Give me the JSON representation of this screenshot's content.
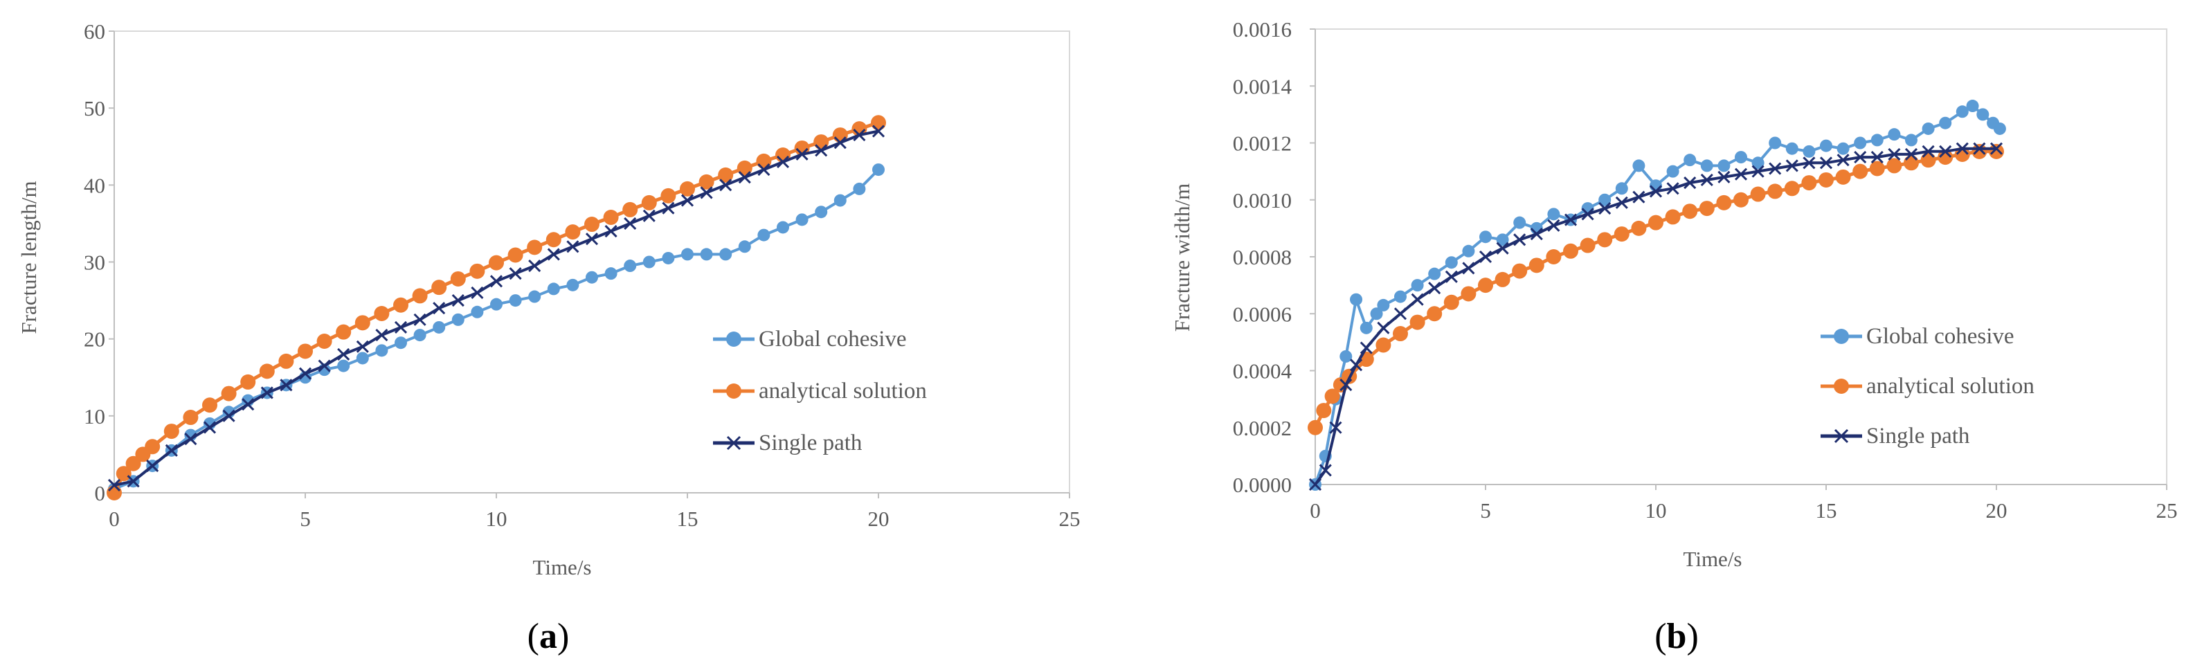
{
  "colors": {
    "global": "#5B9BD5",
    "analytical": "#ED7D31",
    "single": "#1F2E6E",
    "axis": "#D9D9D9",
    "text": "#595959"
  },
  "chart_data": [
    {
      "type": "line",
      "panel": "a",
      "panel_label": {
        "open": "(",
        "letter": "a",
        "close": ")"
      },
      "xlabel": "Time/s",
      "ylabel": "Fracture length/m",
      "xlim": [
        0,
        25
      ],
      "ylim": [
        0,
        60
      ],
      "xticks": [
        "0",
        "5",
        "10",
        "15",
        "20",
        "25"
      ],
      "yticks": [
        "0",
        "10",
        "20",
        "30",
        "40",
        "50",
        "60"
      ],
      "legend_position": "right",
      "series": [
        {
          "name": "Global cohesive",
          "marker": "circle",
          "x": [
            0,
            0.5,
            1,
            1.5,
            2,
            2.5,
            3,
            3.5,
            4,
            4.5,
            5,
            5.5,
            6,
            6.5,
            7,
            7.5,
            8,
            8.5,
            9,
            9.5,
            10,
            10.5,
            11,
            11.5,
            12,
            12.5,
            13,
            13.5,
            14,
            14.5,
            15,
            15.5,
            16,
            16.5,
            17,
            17.5,
            18,
            18.5,
            19,
            19.5,
            20
          ],
          "y": [
            0.5,
            1.5,
            3.5,
            5.5,
            7.5,
            9,
            10.5,
            12,
            13,
            14,
            15,
            16,
            16.5,
            17.5,
            18.5,
            19.5,
            20.5,
            21.5,
            22.5,
            23.5,
            24.5,
            25,
            25.5,
            26.5,
            27,
            28,
            28.5,
            29.5,
            30,
            30.5,
            31,
            31,
            31,
            32,
            33.5,
            34.5,
            35.5,
            36.5,
            38,
            39.5,
            42
          ]
        },
        {
          "name": "analytical solution",
          "marker": "circle",
          "x": [
            0,
            0.25,
            0.5,
            0.75,
            1,
            1.5,
            2,
            2.5,
            3,
            3.5,
            4,
            4.5,
            5,
            5.5,
            6,
            6.5,
            7,
            7.5,
            8,
            8.5,
            9,
            9.5,
            10,
            10.5,
            11,
            11.5,
            12,
            12.5,
            13,
            13.5,
            14,
            14.5,
            15,
            15.5,
            16,
            16.5,
            17,
            17.5,
            18,
            18.5,
            19,
            19.5,
            20
          ],
          "y": [
            0,
            2.5,
            3.8,
            5,
            6,
            8,
            9.8,
            11.4,
            12.9,
            14.4,
            15.8,
            17.1,
            18.4,
            19.7,
            20.9,
            22.1,
            23.3,
            24.4,
            25.6,
            26.7,
            27.8,
            28.8,
            29.9,
            30.9,
            31.9,
            32.9,
            33.9,
            34.9,
            35.8,
            36.8,
            37.7,
            38.6,
            39.5,
            40.4,
            41.3,
            42.2,
            43.1,
            43.9,
            44.8,
            45.6,
            46.5,
            47.3,
            48.1
          ]
        },
        {
          "name": "Single path",
          "marker": "x",
          "x": [
            0,
            0.5,
            1,
            1.5,
            2,
            2.5,
            3,
            3.5,
            4,
            4.5,
            5,
            5.5,
            6,
            6.5,
            7,
            7.5,
            8,
            8.5,
            9,
            9.5,
            10,
            10.5,
            11,
            11.5,
            12,
            12.5,
            13,
            13.5,
            14,
            14.5,
            15,
            15.5,
            16,
            16.5,
            17,
            17.5,
            18,
            18.5,
            19,
            19.5,
            20
          ],
          "y": [
            1,
            1.5,
            3.5,
            5.5,
            7,
            8.5,
            10,
            11.5,
            13,
            14,
            15.5,
            16.5,
            18,
            19,
            20.5,
            21.5,
            22.5,
            24,
            25,
            26,
            27.5,
            28.5,
            29.5,
            31,
            32,
            33,
            34,
            35,
            36,
            37,
            38,
            39,
            40,
            41,
            42,
            43,
            44,
            44.5,
            45.5,
            46.5,
            47
          ]
        }
      ]
    },
    {
      "type": "line",
      "panel": "b",
      "panel_label": {
        "open": "(",
        "letter": "b",
        "close": ")"
      },
      "xlabel": "Time/s",
      "ylabel": "Fracture width/m",
      "xlim": [
        0,
        25
      ],
      "ylim": [
        0,
        0.0016
      ],
      "xticks": [
        "0",
        "5",
        "10",
        "15",
        "20",
        "25"
      ],
      "yticks": [
        "0.0000",
        "0.0002",
        "0.0004",
        "0.0006",
        "0.0008",
        "0.0010",
        "0.0012",
        "0.0014",
        "0.0016"
      ],
      "legend_position": "right",
      "series": [
        {
          "name": "Global cohesive",
          "marker": "circle",
          "x": [
            0,
            0.3,
            0.6,
            0.9,
            1.2,
            1.5,
            1.8,
            2,
            2.5,
            3,
            3.5,
            4,
            4.5,
            5,
            5.5,
            6,
            6.5,
            7,
            7.5,
            8,
            8.5,
            9,
            9.5,
            10,
            10.5,
            11,
            11.5,
            12,
            12.5,
            13,
            13.5,
            14,
            14.5,
            15,
            15.5,
            16,
            16.5,
            17,
            17.5,
            18,
            18.5,
            19,
            19.3,
            19.6,
            19.9,
            20.1
          ],
          "y": [
            0,
            0.0001,
            0.0003,
            0.00045,
            0.00065,
            0.00055,
            0.0006,
            0.00063,
            0.00066,
            0.0007,
            0.00074,
            0.00078,
            0.00082,
            0.00087,
            0.00086,
            0.00092,
            0.0009,
            0.00095,
            0.00093,
            0.00097,
            0.001,
            0.00104,
            0.00112,
            0.00105,
            0.0011,
            0.00114,
            0.00112,
            0.00112,
            0.00115,
            0.00113,
            0.0012,
            0.00118,
            0.00117,
            0.00119,
            0.00118,
            0.0012,
            0.00121,
            0.00123,
            0.00121,
            0.00125,
            0.00127,
            0.00131,
            0.00133,
            0.0013,
            0.00127,
            0.00125
          ]
        },
        {
          "name": "analytical solution",
          "marker": "circle",
          "x": [
            0,
            0.25,
            0.5,
            0.75,
            1,
            1.5,
            2,
            2.5,
            3,
            3.5,
            4,
            4.5,
            5,
            5.5,
            6,
            6.5,
            7,
            7.5,
            8,
            8.5,
            9,
            9.5,
            10,
            10.5,
            11,
            11.5,
            12,
            12.5,
            13,
            13.5,
            14,
            14.5,
            15,
            15.5,
            16,
            16.5,
            17,
            17.5,
            18,
            18.5,
            19,
            19.5,
            20
          ],
          "y": [
            0.0002,
            0.00026,
            0.00031,
            0.00035,
            0.00038,
            0.00044,
            0.00049,
            0.00053,
            0.00057,
            0.0006,
            0.00064,
            0.00067,
            0.0007,
            0.00072,
            0.00075,
            0.00077,
            0.0008,
            0.00082,
            0.00084,
            0.00086,
            0.00088,
            0.0009,
            0.00092,
            0.00094,
            0.00096,
            0.00097,
            0.00099,
            0.001,
            0.00102,
            0.00103,
            0.00104,
            0.00106,
            0.00107,
            0.00108,
            0.0011,
            0.00111,
            0.00112,
            0.00113,
            0.00114,
            0.00115,
            0.00116,
            0.00117,
            0.00117
          ]
        },
        {
          "name": "Single path",
          "marker": "x",
          "x": [
            0,
            0.3,
            0.6,
            0.9,
            1.2,
            1.5,
            2,
            2.5,
            3,
            3.5,
            4,
            4.5,
            5,
            5.5,
            6,
            6.5,
            7,
            7.5,
            8,
            8.5,
            9,
            9.5,
            10,
            10.5,
            11,
            11.5,
            12,
            12.5,
            13,
            13.5,
            14,
            14.5,
            15,
            15.5,
            16,
            16.5,
            17,
            17.5,
            18,
            18.5,
            19,
            19.5,
            20
          ],
          "y": [
            0,
            5e-05,
            0.0002,
            0.00035,
            0.00042,
            0.00048,
            0.00055,
            0.0006,
            0.00065,
            0.00069,
            0.00073,
            0.00076,
            0.0008,
            0.00083,
            0.00086,
            0.00088,
            0.00091,
            0.00093,
            0.00095,
            0.00097,
            0.00099,
            0.00101,
            0.00103,
            0.00104,
            0.00106,
            0.00107,
            0.00108,
            0.00109,
            0.0011,
            0.00111,
            0.00112,
            0.00113,
            0.00113,
            0.00114,
            0.00115,
            0.00115,
            0.00116,
            0.00116,
            0.00117,
            0.00117,
            0.00118,
            0.00118,
            0.00118
          ]
        }
      ]
    }
  ]
}
